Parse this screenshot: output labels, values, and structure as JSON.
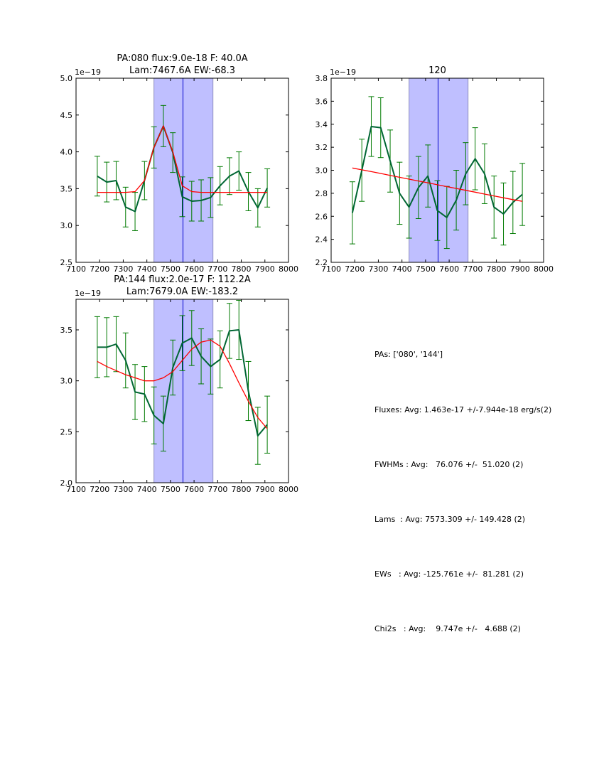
{
  "chart_data": [
    {
      "type": "line",
      "title_lines": [
        "PA:080 flux:9.0e-18 F: 40.0A",
        "Lam:7467.6A EW:-68.3"
      ],
      "xlabel": "",
      "ylabel": "",
      "y_offset_label": "1e−19",
      "xlim": [
        7100,
        8000
      ],
      "ylim": [
        2.5,
        5.0
      ],
      "xticks": [
        "7100",
        "7200",
        "7300",
        "7400",
        "7500",
        "7600",
        "7700",
        "7800",
        "7900",
        "8000"
      ],
      "yticks": [
        "2.5",
        "3.0",
        "3.5",
        "4.0",
        "4.5",
        "5.0"
      ],
      "grid": false,
      "shaded_band": [
        7430,
        7680
      ],
      "vertical_line": 7553,
      "x": [
        7190,
        7230,
        7270,
        7310,
        7350,
        7390,
        7430,
        7470,
        7510,
        7550,
        7590,
        7630,
        7670,
        7710,
        7750,
        7790,
        7830,
        7870,
        7910
      ],
      "series": [
        {
          "name": "data",
          "color": "#006633",
          "values": [
            3.67,
            3.59,
            3.61,
            3.25,
            3.19,
            3.61,
            4.06,
            4.35,
            3.99,
            3.39,
            3.33,
            3.34,
            3.38,
            3.54,
            3.67,
            3.74,
            3.46,
            3.24,
            3.51
          ],
          "errors": [
            0.27,
            0.27,
            0.26,
            0.27,
            0.26,
            0.26,
            0.28,
            0.28,
            0.27,
            0.27,
            0.27,
            0.28,
            0.27,
            0.26,
            0.25,
            0.26,
            0.26,
            0.26,
            0.26
          ]
        },
        {
          "name": "model",
          "color": "#ff0000",
          "values": [
            3.45,
            3.45,
            3.45,
            3.45,
            3.46,
            3.61,
            4.06,
            4.35,
            4.0,
            3.54,
            3.46,
            3.45,
            3.45,
            3.45,
            3.45,
            3.45,
            3.45,
            3.45,
            3.45
          ]
        }
      ]
    },
    {
      "type": "line",
      "title_lines": [
        "120"
      ],
      "xlabel": "",
      "ylabel": "",
      "y_offset_label": "1e−19",
      "xlim": [
        7100,
        8000
      ],
      "ylim": [
        2.2,
        3.8
      ],
      "xticks": [
        "7100",
        "7200",
        "7300",
        "7400",
        "7500",
        "7600",
        "7700",
        "7800",
        "7900",
        "8000"
      ],
      "yticks": [
        "2.2",
        "2.4",
        "2.6",
        "2.8",
        "3.0",
        "3.2",
        "3.4",
        "3.6",
        "3.8"
      ],
      "grid": false,
      "shaded_band": [
        7430,
        7680
      ],
      "vertical_line": 7553,
      "x": [
        7190,
        7230,
        7270,
        7310,
        7350,
        7390,
        7430,
        7470,
        7510,
        7550,
        7590,
        7630,
        7670,
        7710,
        7750,
        7790,
        7830,
        7870,
        7910
      ],
      "series": [
        {
          "name": "data",
          "color": "#006633",
          "values": [
            2.63,
            3.0,
            3.38,
            3.37,
            3.08,
            2.8,
            2.68,
            2.85,
            2.95,
            2.65,
            2.59,
            2.74,
            2.97,
            3.1,
            2.97,
            2.68,
            2.62,
            2.72,
            2.79
          ],
          "errors": [
            0.27,
            0.27,
            0.26,
            0.26,
            0.27,
            0.27,
            0.27,
            0.27,
            0.27,
            0.26,
            0.27,
            0.26,
            0.27,
            0.27,
            0.26,
            0.27,
            0.27,
            0.27,
            0.27
          ]
        },
        {
          "name": "model",
          "color": "#ff0000",
          "values": [
            3.02,
            3.004,
            2.988,
            2.972,
            2.955,
            2.939,
            2.923,
            2.907,
            2.891,
            2.874,
            2.858,
            2.842,
            2.826,
            2.81,
            2.793,
            2.777,
            2.761,
            2.745,
            2.73
          ]
        }
      ]
    },
    {
      "type": "line",
      "title_lines": [
        "PA:144 flux:2.0e-17 F: 112.2A",
        "Lam:7679.0A EW:-183.2"
      ],
      "xlabel": "",
      "ylabel": "",
      "y_offset_label": "1e−19",
      "xlim": [
        7100,
        8000
      ],
      "ylim": [
        2.0,
        3.8
      ],
      "xticks": [
        "7100",
        "7200",
        "7300",
        "7400",
        "7500",
        "7600",
        "7700",
        "7800",
        "7900",
        "8000"
      ],
      "yticks": [
        "2.0",
        "2.5",
        "3.0",
        "3.5"
      ],
      "ytick_values": [
        2.0,
        2.5,
        3.0,
        3.5
      ],
      "grid": false,
      "shaded_band": [
        7430,
        7680
      ],
      "vertical_line": 7553,
      "x": [
        7190,
        7230,
        7270,
        7310,
        7350,
        7390,
        7430,
        7470,
        7510,
        7550,
        7590,
        7630,
        7670,
        7710,
        7750,
        7790,
        7830,
        7870,
        7910
      ],
      "series": [
        {
          "name": "data",
          "color": "#006633",
          "values": [
            3.33,
            3.33,
            3.36,
            3.2,
            2.89,
            2.87,
            2.66,
            2.58,
            3.13,
            3.37,
            3.42,
            3.24,
            3.14,
            3.21,
            3.49,
            3.5,
            2.9,
            2.46,
            2.57
          ],
          "errors": [
            0.3,
            0.29,
            0.27,
            0.27,
            0.27,
            0.27,
            0.28,
            0.27,
            0.27,
            0.27,
            0.27,
            0.27,
            0.27,
            0.28,
            0.27,
            0.29,
            0.29,
            0.28,
            0.28
          ]
        },
        {
          "name": "model",
          "color": "#ff0000",
          "values": [
            3.19,
            3.14,
            3.1,
            3.06,
            3.03,
            3.0,
            3.0,
            3.03,
            3.09,
            3.2,
            3.31,
            3.38,
            3.4,
            3.34,
            3.17,
            2.98,
            2.8,
            2.64,
            2.53
          ]
        }
      ]
    }
  ],
  "summary": {
    "lines": [
      "PAs: ['080', '144']",
      "Fluxes: Avg: 1.463e-17 +/-7.944e-18 erg/s(2)",
      "FWHMs : Avg:   76.076 +/-  51.020 (2)",
      "Lams  : Avg: 7573.309 +/- 149.428 (2)",
      "EWs   : Avg: -125.761e +/-  81.281 (2)",
      "Chi2s   : Avg:    9.747e +/-   4.688 (2)"
    ]
  },
  "colors": {
    "band_fill": "#bfbfff",
    "band_edge": "#8f8fbf",
    "vline": "#0000cc",
    "data": "#006633",
    "errorbar": "#007a00",
    "model": "#ff0000"
  }
}
